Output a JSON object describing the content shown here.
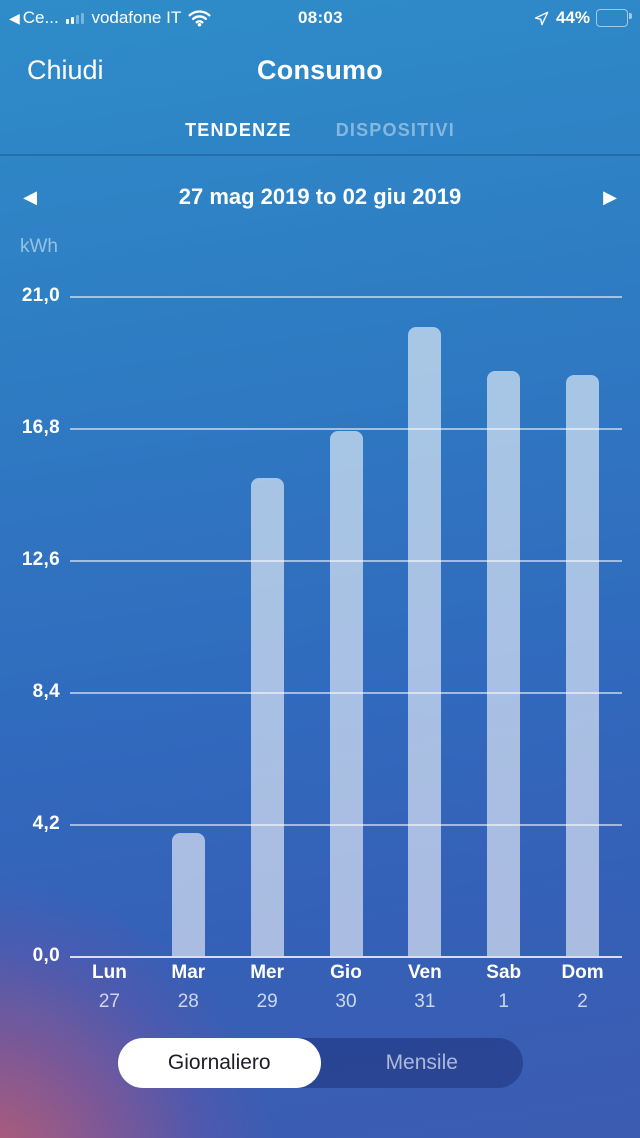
{
  "status_bar": {
    "back_app_icon": "◀",
    "back_app_label": "Ce...",
    "signal_icon": "cellular-signal-2-of-4-bars",
    "carrier": "vodafone IT",
    "wifi_icon": "wifi",
    "time": "08:03",
    "location_icon": "location-arrow",
    "battery_percent": "44%",
    "battery_level": 44
  },
  "header": {
    "close_label": "Chiudi",
    "title": "Consumo"
  },
  "tabs": [
    {
      "label": "TENDENZE",
      "active": true
    },
    {
      "label": "DISPOSITIVI",
      "active": false
    }
  ],
  "date_nav": {
    "prev_icon": "◀",
    "range": "27 mag 2019 to 02 giu 2019",
    "next_icon": "▶"
  },
  "chart_data": {
    "type": "bar",
    "title": "",
    "unit": "kWh",
    "categories": [
      "Lun",
      "Mar",
      "Mer",
      "Gio",
      "Ven",
      "Sab",
      "Dom"
    ],
    "category_dates": [
      "27",
      "28",
      "29",
      "30",
      "31",
      "1",
      "2"
    ],
    "values": [
      0,
      3.9,
      15.2,
      16.7,
      20.0,
      18.6,
      18.5
    ],
    "y_ticks": [
      "21,0",
      "16,8",
      "12,6",
      "8,4",
      "4,2",
      "0,0"
    ],
    "y_tick_values": [
      21,
      16.8,
      12.6,
      8.4,
      4.2,
      0
    ],
    "ylim": [
      0,
      21
    ],
    "grid": true,
    "legend": "none",
    "bar_color": "rgba(255,255,255,0.58)"
  },
  "footer_toggle": {
    "options": [
      {
        "label": "Giornaliero",
        "active": true
      },
      {
        "label": "Mensile",
        "active": false
      }
    ]
  }
}
